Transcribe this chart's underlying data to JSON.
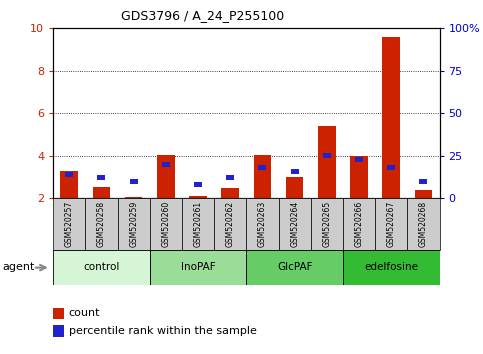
{
  "title": "GDS3796 / A_24_P255100",
  "samples": [
    "GSM520257",
    "GSM520258",
    "GSM520259",
    "GSM520260",
    "GSM520261",
    "GSM520262",
    "GSM520263",
    "GSM520264",
    "GSM520265",
    "GSM520266",
    "GSM520267",
    "GSM520268"
  ],
  "count_values": [
    3.3,
    2.55,
    2.05,
    4.05,
    2.1,
    2.5,
    4.05,
    3.0,
    5.4,
    4.0,
    9.6,
    2.4
  ],
  "percentile_values": [
    14,
    12,
    10,
    20,
    8,
    12,
    18,
    16,
    25,
    23,
    18,
    10
  ],
  "groups": [
    {
      "label": "control",
      "start": 0,
      "end": 3,
      "color": "#d6f5d6"
    },
    {
      "label": "InoPAF",
      "start": 3,
      "end": 6,
      "color": "#99dd99"
    },
    {
      "label": "GlcPAF",
      "start": 6,
      "end": 9,
      "color": "#66cc66"
    },
    {
      "label": "edelfosine",
      "start": 9,
      "end": 12,
      "color": "#33bb33"
    }
  ],
  "ylim_left": [
    2,
    10
  ],
  "ylim_right": [
    0,
    100
  ],
  "yticks_left": [
    2,
    4,
    6,
    8,
    10
  ],
  "yticks_right": [
    0,
    25,
    50,
    75,
    100
  ],
  "bar_color_red": "#cc2200",
  "bar_color_blue": "#2222cc",
  "bg_color": "#ffffff",
  "plot_bg": "#ffffff",
  "grid_color": "#000000",
  "tick_label_color_left": "#cc2200",
  "tick_label_color_right": "#0000cc",
  "xtick_bg": "#cccccc",
  "agent_label": "agent",
  "legend_count": "count",
  "legend_pct": "percentile rank within the sample"
}
